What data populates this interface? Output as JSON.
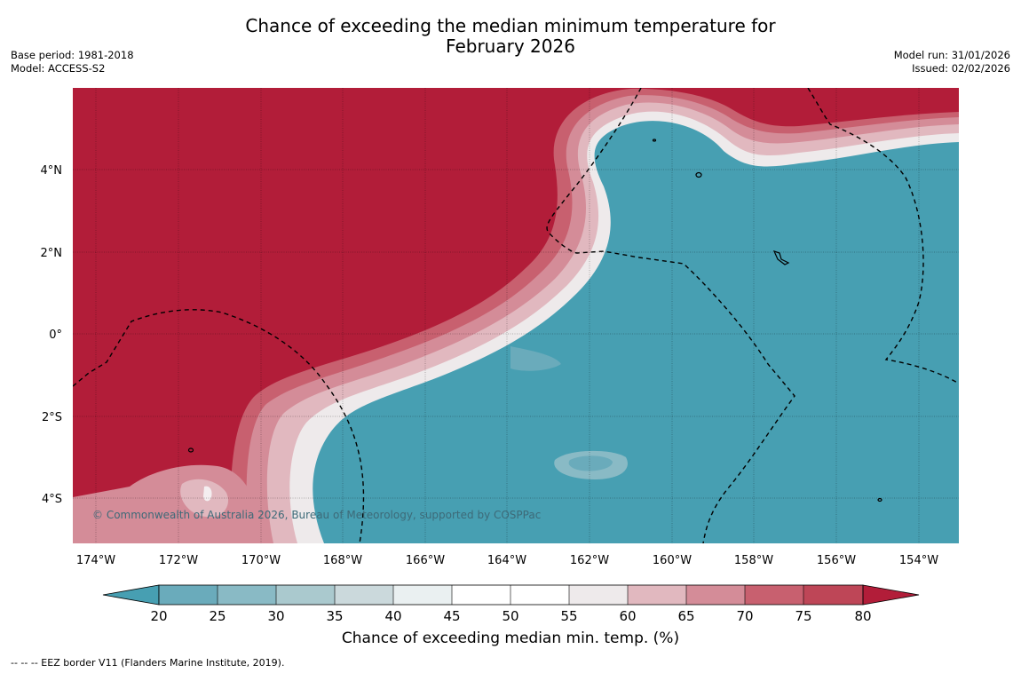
{
  "title": {
    "line1": "Chance of exceeding the median minimum temperature for",
    "line2": "February 2026"
  },
  "meta": {
    "base_period": "Base period: 1981-2018",
    "model": "Model: ACCESS-S2",
    "model_run": "Model run: 31/01/2026",
    "issued": "Issued: 02/02/2026"
  },
  "map": {
    "lon_labels": [
      "174°W",
      "172°W",
      "170°W",
      "168°W",
      "166°W",
      "164°W",
      "162°W",
      "160°W",
      "158°W",
      "156°W",
      "154°W"
    ],
    "lat_labels": [
      "4°N",
      "2°N",
      "0°",
      "2°S",
      "4°S"
    ],
    "credit": "© Commonwealth of Australia 2026, Bureau of Meteorology, supported by COSPPac",
    "colors": {
      "cold": "#479fb2",
      "warm": "#b21d39"
    }
  },
  "colorbar": {
    "ticks": [
      "20",
      "25",
      "30",
      "35",
      "40",
      "45",
      "50",
      "55",
      "60",
      "65",
      "70",
      "75",
      "80"
    ],
    "colors": [
      "#479fb2",
      "#6aabbb",
      "#89bac5",
      "#aac9ce",
      "#cbd9dc",
      "#eaf0f1",
      "#ffffff",
      "#ffffff",
      "#eeeaeb",
      "#e1b8bf",
      "#d48c98",
      "#c8606f",
      "#be4657",
      "#b21d39"
    ],
    "label": "Chance of exceeding median min. temp. (%)"
  },
  "footnote": "--  --  -- EEZ border V11 (Flanders Marine Institute, 2019)."
}
